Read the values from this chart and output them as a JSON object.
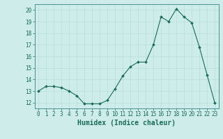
{
  "x": [
    0,
    1,
    2,
    3,
    4,
    5,
    6,
    7,
    8,
    9,
    10,
    11,
    12,
    13,
    14,
    15,
    16,
    17,
    18,
    19,
    20,
    21,
    22,
    23
  ],
  "y": [
    13,
    13.4,
    13.4,
    13.3,
    13.0,
    12.6,
    11.9,
    11.9,
    11.9,
    12.2,
    13.2,
    14.3,
    15.1,
    15.5,
    15.5,
    17.0,
    19.4,
    19.0,
    20.1,
    19.4,
    18.9,
    16.8,
    14.4,
    12.0
  ],
  "xlabel": "Humidex (Indice chaleur)",
  "ylim": [
    11.5,
    20.5
  ],
  "xlim": [
    -0.5,
    23.5
  ],
  "yticks": [
    12,
    13,
    14,
    15,
    16,
    17,
    18,
    19,
    20
  ],
  "xticks": [
    0,
    1,
    2,
    3,
    4,
    5,
    6,
    7,
    8,
    9,
    10,
    11,
    12,
    13,
    14,
    15,
    16,
    17,
    18,
    19,
    20,
    21,
    22,
    23
  ],
  "line_color": "#1a6b5a",
  "marker_color": "#1a6b5a",
  "bg_color": "#cdecea",
  "grid_color": "#b8dedd",
  "axis_color": "#4a9090",
  "tick_fontsize": 5.5,
  "xlabel_fontsize": 7.0
}
